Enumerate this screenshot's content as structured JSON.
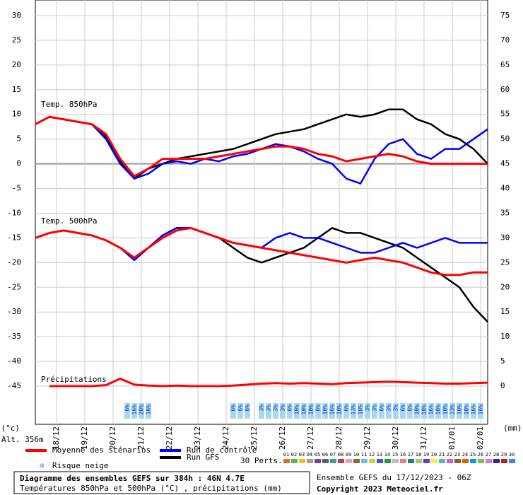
{
  "chart_data": {
    "type": "ensemble",
    "x": [
      0,
      12,
      24,
      36,
      48,
      60,
      72,
      84,
      96,
      108,
      120,
      132,
      144,
      156,
      168,
      180,
      192,
      204,
      216,
      228,
      240,
      252,
      264,
      276,
      288,
      300,
      312,
      324,
      336,
      348,
      360,
      372,
      384
    ],
    "xlim": [
      0,
      384
    ],
    "xticks": [
      {
        "value": 18,
        "label": "18/12"
      },
      {
        "value": 42,
        "label": "19/12"
      },
      {
        "value": 66,
        "label": "20/12"
      },
      {
        "value": 90,
        "label": "21/12"
      },
      {
        "value": 114,
        "label": "22/12"
      },
      {
        "value": 138,
        "label": "23/12"
      },
      {
        "value": 162,
        "label": "24/12"
      },
      {
        "value": 186,
        "label": "25/12"
      },
      {
        "value": 210,
        "label": "26/12"
      },
      {
        "value": 234,
        "label": "27/12"
      },
      {
        "value": 258,
        "label": "28/12"
      },
      {
        "value": 282,
        "label": "29/12"
      },
      {
        "value": 306,
        "label": "30/12"
      },
      {
        "value": 330,
        "label": "31/12"
      },
      {
        "value": 354,
        "label": "01/01"
      },
      {
        "value": 378,
        "label": "02/01"
      }
    ],
    "ylim": [
      -52.73,
      33.15
    ],
    "yticks": [
      30,
      25,
      20,
      15,
      10,
      5,
      0,
      -5,
      -10,
      -15,
      -20,
      -25,
      -30,
      -35,
      -40,
      -45
    ],
    "y2lim": [
      -7.73,
      78.15
    ],
    "y2ticks": [
      75,
      70,
      65,
      60,
      55,
      50,
      45,
      40,
      35,
      30,
      25,
      20,
      15,
      10,
      5,
      0
    ],
    "ylabel": "(°c)",
    "y2label": "(mm)",
    "altitude": "Alt. 356m",
    "grid": true,
    "label_850": "Temp. 850hPa",
    "label_500": "Temp. 500hPa",
    "label_precip": "Précipitations",
    "series": [
      {
        "name": "Moyenne des scénarios",
        "color": "#ff0000",
        "t850": [
          8,
          9.5,
          9,
          8.5,
          8,
          6,
          1,
          -2.5,
          -1,
          1,
          1,
          1,
          1,
          1.5,
          2,
          2.5,
          3,
          3.5,
          3.5,
          3,
          2,
          1.5,
          0.5,
          1,
          1.5,
          2,
          1.5,
          0.5,
          0,
          0,
          0,
          0,
          0
        ],
        "t500": [
          -15,
          -14,
          -13.5,
          -14,
          -14.5,
          -15.5,
          -17,
          -19,
          -17,
          -15,
          -13.5,
          -13,
          -14,
          -15,
          -16,
          -16.5,
          -17,
          -17.5,
          -18,
          -18.5,
          -19,
          -19.5,
          -20,
          -19.5,
          -19,
          -19.5,
          -20,
          -21,
          -22,
          -22.5,
          -22.5,
          -22,
          -22
        ],
        "precip": [
          null,
          0,
          0,
          0,
          0,
          0.2,
          1.5,
          0.3,
          0.1,
          0,
          0.1,
          0,
          0,
          0,
          0.1,
          0.3,
          0.5,
          0.6,
          0.5,
          0.6,
          0.5,
          0.4,
          0.6,
          0.7,
          0.8,
          0.9,
          0.8,
          0.7,
          0.6,
          0.5,
          0.5,
          0.6,
          0.7
        ]
      },
      {
        "name": "Run de contrôle",
        "color": "#0000ff",
        "t850": [
          8,
          9.5,
          9,
          8.5,
          8,
          5,
          0,
          -3,
          -2,
          0,
          0.5,
          0,
          1,
          0.5,
          1.5,
          2,
          3,
          4,
          3.5,
          2.5,
          1,
          0,
          -3,
          -4,
          1,
          4,
          5,
          2,
          1,
          3,
          3,
          5,
          7
        ],
        "t500": [
          -15,
          -14,
          -13.5,
          -14,
          -14.5,
          -15.5,
          -17,
          -19.5,
          -17,
          -14.5,
          -13,
          -13,
          -14,
          -15,
          -16,
          -16.5,
          -17,
          -15,
          -14,
          -15,
          -15,
          -16,
          -17,
          -18,
          -18,
          -17,
          -16,
          -17,
          -16,
          -15,
          -16,
          -16,
          -16
        ]
      },
      {
        "name": "Run GFS",
        "color": "#000000",
        "t850": [
          8,
          9.5,
          9,
          8.5,
          8,
          5.5,
          0.5,
          -3,
          -1,
          0,
          1,
          1.5,
          2,
          2.5,
          3,
          4,
          5,
          6,
          6.5,
          7,
          8,
          9,
          10,
          9.5,
          10,
          11,
          11,
          9,
          8,
          6,
          5,
          3,
          0
        ],
        "t500": [
          -15,
          -14,
          -13.5,
          -14,
          -14.5,
          -15.5,
          -17,
          -19,
          -17,
          -14.5,
          -13,
          -13,
          -14,
          -15,
          -17,
          -19,
          -20,
          -19,
          -18,
          -17,
          -15,
          -13,
          -14,
          -14,
          -15,
          -16,
          -17,
          -19,
          -21,
          -23,
          -25,
          -29,
          -32
        ]
      }
    ],
    "snow": {
      "label": "Risque neige",
      "x": [
        78,
        84,
        90,
        96,
        168,
        174,
        180,
        192,
        198,
        204,
        210,
        216,
        222,
        228,
        234,
        240,
        246,
        252,
        258,
        264,
        270,
        276,
        282,
        288,
        294,
        300,
        306,
        312,
        318,
        324,
        330,
        336,
        342,
        348,
        354,
        360,
        366,
        372,
        378
      ],
      "values": [
        6,
        16,
        20,
        16,
        6,
        6,
        6,
        3,
        3,
        3,
        3,
        6,
        10,
        10,
        10,
        6,
        10,
        16,
        10,
        6,
        13,
        10,
        3,
        3,
        6,
        3,
        3,
        6,
        6,
        10,
        10,
        16,
        10,
        10,
        13,
        10,
        10,
        16,
        16
      ],
      "value_labels": [
        "6%",
        "16%",
        "20%",
        "16%",
        "6%",
        "6%",
        "6%",
        "3%",
        "3%",
        "3%",
        "3%",
        "6%",
        "10%",
        "10%",
        "10%",
        "6%",
        "10%",
        "16%",
        "10%",
        "6%",
        "13%",
        "10%",
        "3%",
        "3%",
        "6%",
        "3%",
        "3%",
        "6%",
        "6%",
        "10%",
        "10%",
        "16%",
        "10%",
        "10%",
        "13%",
        "10%",
        "10%",
        "16%",
        "16%"
      ]
    },
    "perturbations": {
      "label": "30 Perts.",
      "names": [
        "01",
        "02",
        "03",
        "04",
        "05",
        "06",
        "07",
        "08",
        "09",
        "10",
        "11",
        "12",
        "13",
        "14",
        "15",
        "16",
        "17",
        "18",
        "19",
        "20",
        "21",
        "22",
        "23",
        "24",
        "25",
        "26",
        "27",
        "28",
        "29",
        "30"
      ],
      "colors": [
        "#e07020",
        "#60b060",
        "#f0c020",
        "#a0a0a0",
        "#8040a0",
        "#606060",
        "#30a0b0",
        "#c04040",
        "#e0a0c0",
        "#a06030",
        "#70c0e0",
        "#d0d040",
        "#4060c0",
        "#20a040",
        "#c0c0c0",
        "#f08080",
        "#208080",
        "#a0d060",
        "#6040c0",
        "#f0f040",
        "#40c0c0",
        "#d060d0",
        "#806040",
        "#e06000",
        "#00a0f0",
        "#80c040",
        "#c080f0",
        "#402080",
        "#c02020",
        "#4080f0"
      ]
    },
    "title": "Diagramme des ensembles GEFS sur 384h : 46N 4.7E",
    "subtitle": "Températures 850hPa et 500hPa (°C) , précipitations (mm)",
    "run_info": "Ensemble GEFS du 17/12/2023 - 06Z",
    "copyright": "Copyright 2023 Meteociel.fr"
  }
}
